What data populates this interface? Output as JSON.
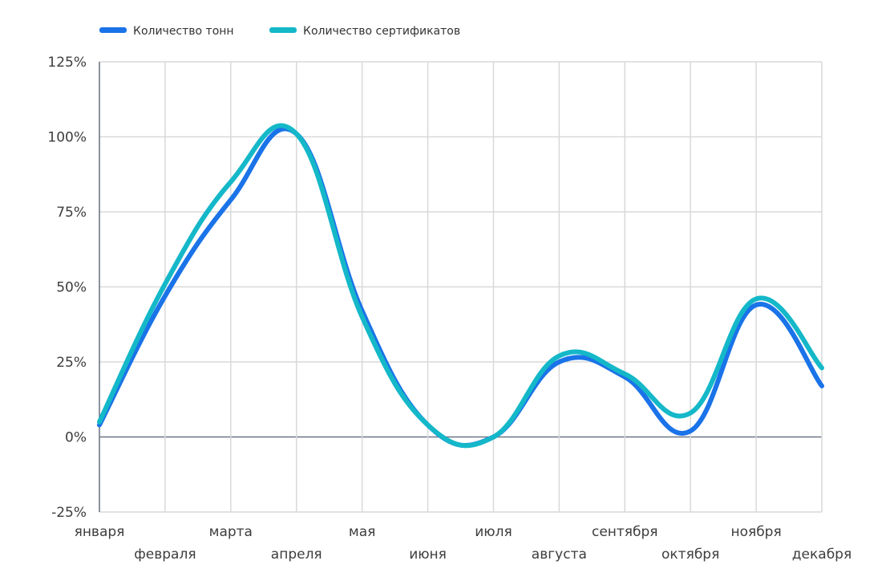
{
  "chart_data": {
    "type": "line",
    "categories": [
      "января",
      "февраля",
      "марта",
      "апреля",
      "мая",
      "июня",
      "июля",
      "августа",
      "сентября",
      "октября",
      "ноября",
      "декабря"
    ],
    "series": [
      {
        "name": "Количество тонн",
        "color": "#1a73e8",
        "values": [
          4,
          47,
          79,
          101,
          42,
          4,
          0,
          25,
          20,
          2,
          44,
          17
        ]
      },
      {
        "name": "Количество сертификатов",
        "color": "#14b8c8",
        "values": [
          5,
          51,
          85,
          101,
          40,
          4,
          0,
          27,
          21,
          8,
          46,
          23
        ]
      }
    ],
    "title": "",
    "xlabel": "",
    "ylabel": "",
    "ylim": [
      -25,
      125
    ],
    "yticks": [
      -25,
      0,
      25,
      50,
      75,
      100,
      125
    ],
    "ytick_labels": [
      "-25%",
      "0%",
      "25%",
      "50%",
      "75%",
      "100%",
      "125%"
    ],
    "legend": "top-left",
    "grid": true
  }
}
